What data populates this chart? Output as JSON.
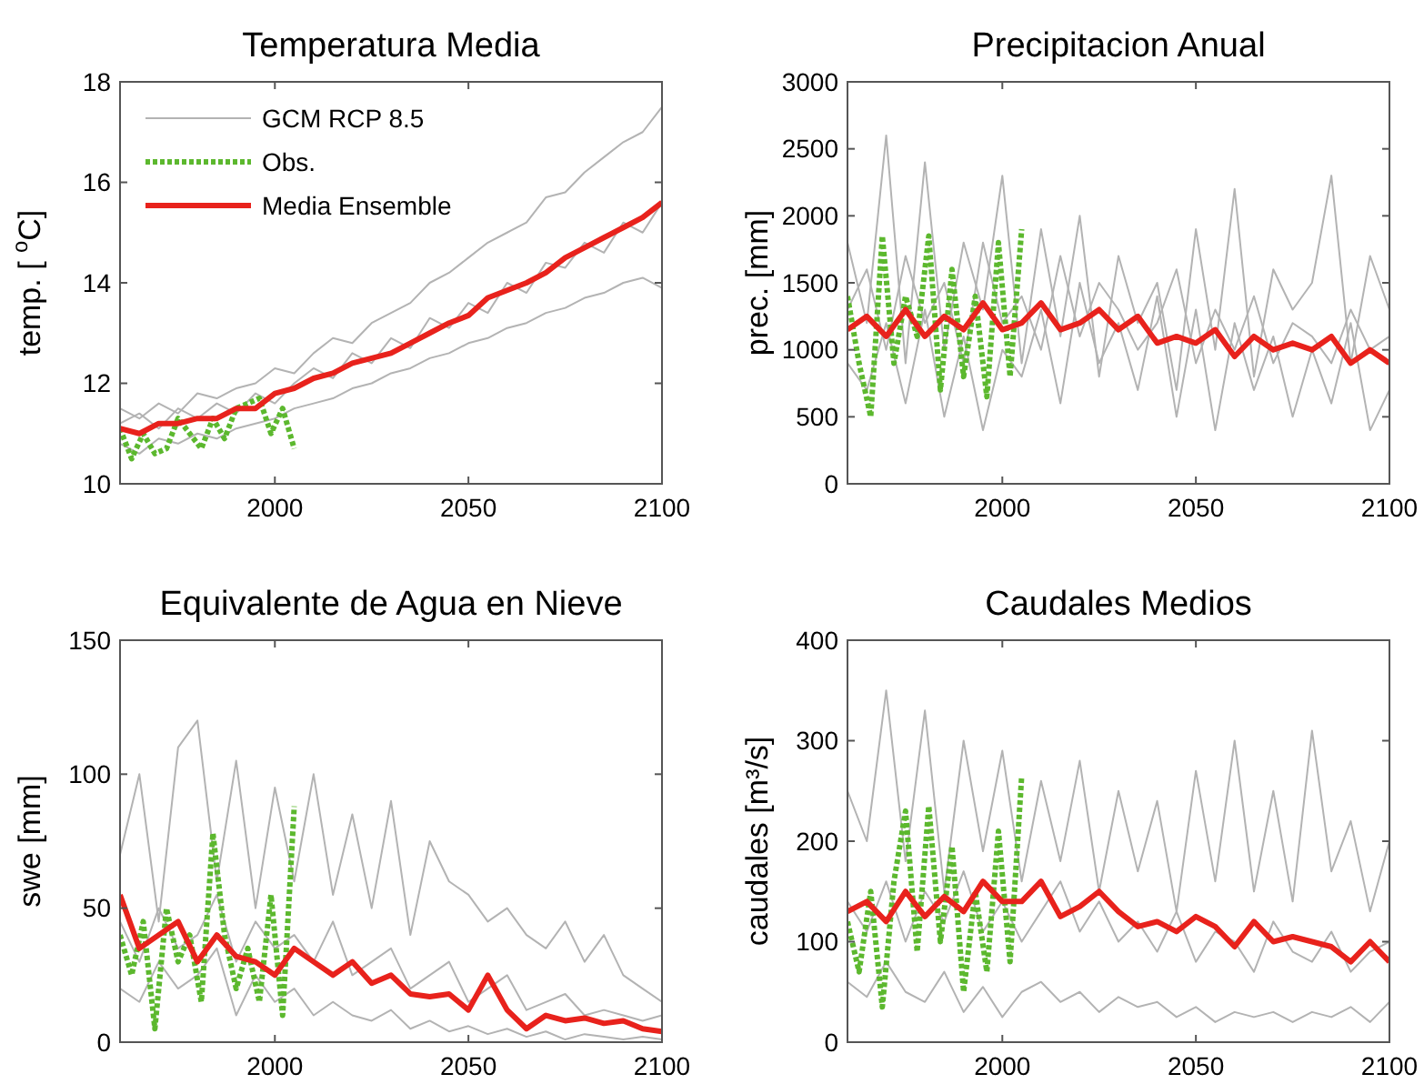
{
  "chart_data": [
    {
      "type": "line",
      "title": "Temperatura Media",
      "ylabel": "temp. [ $^{o}$C]",
      "xlim": [
        1960,
        2100
      ],
      "xticks": [
        2000,
        2050,
        2100
      ],
      "ylim": [
        10,
        18
      ],
      "yticks": [
        10,
        12,
        14,
        16,
        18
      ],
      "legend": "top left",
      "series": [
        {
          "name": "GCM RCP 8.5",
          "color": "#b3b3b3",
          "line_style": "solid",
          "x": [
            1960,
            1965,
            1970,
            1975,
            1980,
            1985,
            1990,
            1995,
            2000,
            2005,
            2010,
            2015,
            2020,
            2025,
            2030,
            2035,
            2040,
            2045,
            2050,
            2055,
            2060,
            2065,
            2070,
            2075,
            2080,
            2085,
            2090,
            2095,
            2100
          ],
          "values": [
            11.5,
            11.3,
            11.6,
            11.4,
            11.8,
            11.7,
            11.9,
            12.0,
            12.3,
            12.2,
            12.6,
            12.9,
            12.8,
            13.2,
            13.4,
            13.6,
            14.0,
            14.2,
            14.5,
            14.8,
            15.0,
            15.2,
            15.7,
            15.8,
            16.2,
            16.5,
            16.8,
            17.0,
            17.5
          ]
        },
        {
          "color": "#b3b3b3",
          "line_style": "solid",
          "x": [
            1960,
            1965,
            1970,
            1975,
            1980,
            1985,
            1990,
            1995,
            2000,
            2005,
            2010,
            2015,
            2020,
            2025,
            2030,
            2035,
            2040,
            2045,
            2050,
            2055,
            2060,
            2065,
            2070,
            2075,
            2080,
            2085,
            2090,
            2095,
            2100
          ],
          "values": [
            10.8,
            10.6,
            10.9,
            10.8,
            11.0,
            10.9,
            11.1,
            11.2,
            11.3,
            11.5,
            11.6,
            11.7,
            11.9,
            12.0,
            12.2,
            12.3,
            12.5,
            12.6,
            12.8,
            12.9,
            13.1,
            13.2,
            13.4,
            13.5,
            13.7,
            13.8,
            14.0,
            14.1,
            13.9
          ]
        },
        {
          "color": "#b3b3b3",
          "line_style": "solid",
          "x": [
            1960,
            1965,
            1970,
            1975,
            1980,
            1985,
            1990,
            1995,
            2000,
            2005,
            2010,
            2015,
            2020,
            2025,
            2030,
            2035,
            2040,
            2045,
            2050,
            2055,
            2060,
            2065,
            2070,
            2075,
            2080,
            2085,
            2090,
            2095,
            2100
          ],
          "values": [
            11.2,
            11.4,
            11.1,
            11.5,
            11.3,
            11.6,
            11.4,
            11.8,
            11.6,
            12.0,
            12.3,
            12.1,
            12.6,
            12.4,
            12.9,
            12.7,
            13.3,
            13.1,
            13.6,
            13.4,
            14.0,
            13.8,
            14.4,
            14.3,
            14.8,
            14.6,
            15.2,
            15.0,
            15.6
          ]
        },
        {
          "name": "Obs.",
          "color": "#5cb82e",
          "line_style": "dotted",
          "x": [
            1960,
            1963,
            1966,
            1969,
            1972,
            1975,
            1978,
            1981,
            1984,
            1987,
            1990,
            1993,
            1996,
            1999,
            2002,
            2005
          ],
          "values": [
            11.1,
            10.5,
            11.0,
            10.6,
            10.7,
            11.3,
            11.0,
            10.7,
            11.3,
            10.9,
            11.5,
            11.6,
            11.7,
            11.0,
            11.5,
            10.7
          ]
        },
        {
          "name": "Media Ensemble",
          "color": "#e8221c",
          "line_style": "solid",
          "x": [
            1960,
            1965,
            1970,
            1975,
            1980,
            1985,
            1990,
            1995,
            2000,
            2005,
            2010,
            2015,
            2020,
            2025,
            2030,
            2035,
            2040,
            2045,
            2050,
            2055,
            2060,
            2065,
            2070,
            2075,
            2080,
            2085,
            2090,
            2095,
            2100
          ],
          "values": [
            11.1,
            11.0,
            11.2,
            11.2,
            11.3,
            11.3,
            11.5,
            11.5,
            11.8,
            11.9,
            12.1,
            12.2,
            12.4,
            12.5,
            12.6,
            12.8,
            13.0,
            13.2,
            13.35,
            13.7,
            13.85,
            14.0,
            14.2,
            14.5,
            14.7,
            14.9,
            15.1,
            15.3,
            15.6
          ]
        }
      ]
    },
    {
      "type": "line",
      "title": "Precipitacion Anual",
      "ylabel": "prec. [mm]",
      "xlim": [
        1960,
        2100
      ],
      "xticks": [
        2000,
        2050,
        2100
      ],
      "ylim": [
        0,
        3000
      ],
      "yticks": [
        0,
        500,
        1000,
        1500,
        2000,
        2500,
        3000
      ],
      "series": [
        {
          "color": "#b3b3b3",
          "line_style": "solid",
          "x": [
            1960,
            1965,
            1970,
            1975,
            1980,
            1985,
            1990,
            1995,
            2000,
            2005,
            2010,
            2015,
            2020,
            2025,
            2030,
            2035,
            2040,
            2045,
            2050,
            2055,
            2060,
            2065,
            2070,
            2075,
            2080,
            2085,
            2090,
            2095,
            2100
          ],
          "values": [
            1800,
            1200,
            2600,
            900,
            2400,
            1000,
            1800,
            1300,
            2300,
            900,
            1900,
            1100,
            2000,
            800,
            1700,
            1200,
            1500,
            700,
            1900,
            1000,
            2200,
            800,
            1600,
            1300,
            1500,
            2300,
            900,
            1700,
            1300
          ]
        },
        {
          "color": "#b3b3b3",
          "line_style": "solid",
          "x": [
            1960,
            1965,
            1970,
            1975,
            1980,
            1985,
            1990,
            1995,
            2000,
            2005,
            2010,
            2015,
            2020,
            2025,
            2030,
            2035,
            2040,
            2045,
            2050,
            2055,
            2060,
            2065,
            2070,
            2075,
            2080,
            2085,
            2090,
            2095,
            2100
          ],
          "values": [
            900,
            700,
            1200,
            600,
            1300,
            500,
            1100,
            400,
            1000,
            800,
            1300,
            600,
            1500,
            900,
            1200,
            700,
            1400,
            500,
            1300,
            400,
            1200,
            700,
            1100,
            500,
            1000,
            600,
            1200,
            400,
            700
          ]
        },
        {
          "color": "#b3b3b3",
          "line_style": "solid",
          "x": [
            1960,
            1965,
            1970,
            1975,
            1980,
            1985,
            1990,
            1995,
            2000,
            2005,
            2010,
            2015,
            2020,
            2025,
            2030,
            2035,
            2040,
            2045,
            2050,
            2055,
            2060,
            2065,
            2070,
            2075,
            2080,
            2085,
            2090,
            2095,
            2100
          ],
          "values": [
            1300,
            1600,
            1000,
            1700,
            1200,
            1500,
            900,
            1800,
            1200,
            1400,
            1000,
            1700,
            1100,
            1500,
            1300,
            1000,
            1200,
            1600,
            900,
            1300,
            1000,
            1400,
            900,
            1200,
            1100,
            900,
            1300,
            1000,
            1100
          ]
        },
        {
          "color": "#5cb82e",
          "line_style": "dotted",
          "x": [
            1960,
            1963,
            1966,
            1969,
            1972,
            1975,
            1978,
            1981,
            1984,
            1987,
            1990,
            1993,
            1996,
            1999,
            2002,
            2005
          ],
          "values": [
            1400,
            900,
            500,
            1850,
            900,
            1400,
            1100,
            1850,
            700,
            1600,
            800,
            1400,
            650,
            1800,
            800,
            1900
          ]
        },
        {
          "color": "#e8221c",
          "line_style": "solid",
          "x": [
            1960,
            1965,
            1970,
            1975,
            1980,
            1985,
            1990,
            1995,
            2000,
            2005,
            2010,
            2015,
            2020,
            2025,
            2030,
            2035,
            2040,
            2045,
            2050,
            2055,
            2060,
            2065,
            2070,
            2075,
            2080,
            2085,
            2090,
            2095,
            2100
          ],
          "values": [
            1150,
            1250,
            1100,
            1300,
            1100,
            1250,
            1150,
            1350,
            1150,
            1200,
            1350,
            1150,
            1200,
            1300,
            1150,
            1250,
            1050,
            1100,
            1050,
            1150,
            950,
            1100,
            1000,
            1050,
            1000,
            1100,
            900,
            1000,
            900
          ]
        }
      ]
    },
    {
      "type": "line",
      "title": "Equivalente de Agua en Nieve",
      "ylabel": "swe [mm]",
      "xlim": [
        1960,
        2100
      ],
      "xticks": [
        2000,
        2050,
        2100
      ],
      "ylim": [
        0,
        150
      ],
      "yticks": [
        0,
        50,
        100,
        150
      ],
      "series": [
        {
          "color": "#b3b3b3",
          "line_style": "solid",
          "x": [
            1960,
            1965,
            1970,
            1975,
            1980,
            1985,
            1990,
            1995,
            2000,
            2005,
            2010,
            2015,
            2020,
            2025,
            2030,
            2035,
            2040,
            2045,
            2050,
            2055,
            2060,
            2065,
            2070,
            2075,
            2080,
            2085,
            2090,
            2095,
            2100
          ],
          "values": [
            70,
            100,
            45,
            110,
            120,
            60,
            105,
            50,
            95,
            60,
            100,
            55,
            85,
            50,
            90,
            40,
            75,
            60,
            55,
            45,
            50,
            40,
            35,
            45,
            30,
            40,
            25,
            20,
            15
          ]
        },
        {
          "color": "#b3b3b3",
          "line_style": "solid",
          "x": [
            1960,
            1965,
            1970,
            1975,
            1980,
            1985,
            1990,
            1995,
            2000,
            2005,
            2010,
            2015,
            2020,
            2025,
            2030,
            2035,
            2040,
            2045,
            2050,
            2055,
            2060,
            2065,
            2070,
            2075,
            2080,
            2085,
            2090,
            2095,
            2100
          ],
          "values": [
            20,
            15,
            30,
            20,
            25,
            35,
            10,
            25,
            15,
            20,
            10,
            15,
            10,
            8,
            12,
            5,
            8,
            4,
            6,
            3,
            5,
            2,
            4,
            1,
            3,
            2,
            1,
            2,
            1
          ]
        },
        {
          "color": "#b3b3b3",
          "line_style": "solid",
          "x": [
            1960,
            1965,
            1970,
            1975,
            1980,
            1985,
            1990,
            1995,
            2000,
            2005,
            2010,
            2015,
            2020,
            2025,
            2030,
            2035,
            2040,
            2045,
            2050,
            2055,
            2060,
            2065,
            2070,
            2075,
            2080,
            2085,
            2090,
            2095,
            2100
          ],
          "values": [
            45,
            30,
            50,
            35,
            40,
            55,
            30,
            45,
            35,
            40,
            30,
            45,
            25,
            30,
            35,
            20,
            25,
            30,
            15,
            20,
            25,
            12,
            15,
            18,
            10,
            12,
            10,
            8,
            10
          ]
        },
        {
          "color": "#5cb82e",
          "line_style": "dotted",
          "x": [
            1960,
            1963,
            1966,
            1969,
            1972,
            1975,
            1978,
            1981,
            1984,
            1987,
            1990,
            1993,
            1996,
            1999,
            2002,
            2005
          ],
          "values": [
            40,
            25,
            45,
            5,
            50,
            30,
            40,
            15,
            78,
            40,
            20,
            35,
            15,
            55,
            10,
            88
          ]
        },
        {
          "color": "#e8221c",
          "line_style": "solid",
          "x": [
            1960,
            1965,
            1970,
            1975,
            1980,
            1985,
            1990,
            1995,
            2000,
            2005,
            2010,
            2015,
            2020,
            2025,
            2030,
            2035,
            2040,
            2045,
            2050,
            2055,
            2060,
            2065,
            2070,
            2075,
            2080,
            2085,
            2090,
            2095,
            2100
          ],
          "values": [
            55,
            35,
            40,
            45,
            30,
            40,
            32,
            30,
            25,
            35,
            30,
            25,
            30,
            22,
            25,
            18,
            17,
            18,
            12,
            25,
            12,
            5,
            10,
            8,
            9,
            7,
            8,
            5,
            4
          ]
        }
      ]
    },
    {
      "type": "line",
      "title": "Caudales Medios",
      "ylabel": "caudales [m³/s]",
      "xlim": [
        1960,
        2100
      ],
      "xticks": [
        2000,
        2050,
        2100
      ],
      "ylim": [
        0,
        400
      ],
      "yticks": [
        0,
        100,
        200,
        300,
        400
      ],
      "series": [
        {
          "color": "#b3b3b3",
          "line_style": "solid",
          "x": [
            1960,
            1965,
            1970,
            1975,
            1980,
            1985,
            1990,
            1995,
            2000,
            2005,
            2010,
            2015,
            2020,
            2025,
            2030,
            2035,
            2040,
            2045,
            2050,
            2055,
            2060,
            2065,
            2070,
            2075,
            2080,
            2085,
            2090,
            2095,
            2100
          ],
          "values": [
            250,
            200,
            350,
            180,
            330,
            150,
            300,
            190,
            290,
            160,
            260,
            180,
            280,
            150,
            250,
            170,
            240,
            130,
            270,
            160,
            300,
            150,
            250,
            140,
            310,
            170,
            220,
            130,
            200
          ]
        },
        {
          "color": "#b3b3b3",
          "line_style": "solid",
          "x": [
            1960,
            1965,
            1970,
            1975,
            1980,
            1985,
            1990,
            1995,
            2000,
            2005,
            2010,
            2015,
            2020,
            2025,
            2030,
            2035,
            2040,
            2045,
            2050,
            2055,
            2060,
            2065,
            2070,
            2075,
            2080,
            2085,
            2090,
            2095,
            2100
          ],
          "values": [
            60,
            45,
            80,
            50,
            40,
            70,
            30,
            55,
            25,
            50,
            60,
            40,
            50,
            30,
            45,
            35,
            40,
            25,
            35,
            20,
            30,
            25,
            30,
            20,
            30,
            25,
            35,
            20,
            40
          ]
        },
        {
          "color": "#b3b3b3",
          "line_style": "solid",
          "x": [
            1960,
            1965,
            1970,
            1975,
            1980,
            1985,
            1990,
            1995,
            2000,
            2005,
            2010,
            2015,
            2020,
            2025,
            2030,
            2035,
            2040,
            2045,
            2050,
            2055,
            2060,
            2065,
            2070,
            2075,
            2080,
            2085,
            2090,
            2095,
            2100
          ],
          "values": [
            140,
            110,
            160,
            100,
            150,
            120,
            170,
            110,
            140,
            100,
            130,
            160,
            110,
            140,
            100,
            120,
            90,
            130,
            80,
            110,
            100,
            70,
            120,
            90,
            80,
            110,
            70,
            90,
            100
          ]
        },
        {
          "color": "#5cb82e",
          "line_style": "dotted",
          "x": [
            1960,
            1963,
            1966,
            1969,
            1972,
            1975,
            1978,
            1981,
            1984,
            1987,
            1990,
            1993,
            1996,
            1999,
            2002,
            2005
          ],
          "values": [
            120,
            70,
            150,
            35,
            160,
            230,
            90,
            235,
            100,
            195,
            50,
            150,
            70,
            210,
            80,
            265
          ]
        },
        {
          "color": "#e8221c",
          "line_style": "solid",
          "x": [
            1960,
            1965,
            1970,
            1975,
            1980,
            1985,
            1990,
            1995,
            2000,
            2005,
            2010,
            2015,
            2020,
            2025,
            2030,
            2035,
            2040,
            2045,
            2050,
            2055,
            2060,
            2065,
            2070,
            2075,
            2080,
            2085,
            2090,
            2095,
            2100
          ],
          "values": [
            130,
            140,
            120,
            150,
            125,
            145,
            130,
            160,
            140,
            140,
            160,
            125,
            135,
            150,
            130,
            115,
            120,
            110,
            125,
            115,
            95,
            120,
            100,
            105,
            100,
            95,
            80,
            100,
            80
          ]
        }
      ]
    }
  ]
}
